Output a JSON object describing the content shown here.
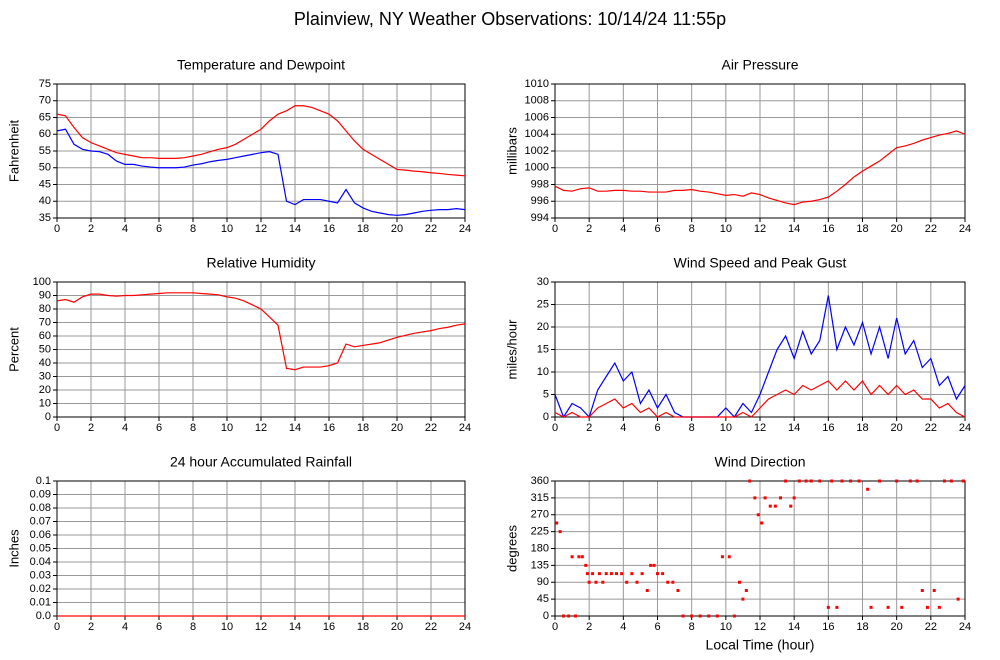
{
  "title": "Plainview, NY Weather Observations: 10/14/24 11:55p",
  "xlabel": "Local Time (hour)",
  "chart_data": [
    {
      "type": "line",
      "title": "Temperature and Dewpoint",
      "ylabel": "Fahrenheit",
      "x": [
        0,
        0.5,
        1,
        1.5,
        2,
        2.5,
        3,
        3.5,
        4,
        4.5,
        5,
        5.5,
        6,
        6.5,
        7,
        7.5,
        8,
        8.5,
        9,
        9.5,
        10,
        10.5,
        11,
        11.5,
        12,
        12.5,
        13,
        13.5,
        14,
        14.5,
        15,
        15.5,
        16,
        16.5,
        17,
        17.5,
        18,
        18.5,
        19,
        19.5,
        20,
        20.5,
        21,
        21.5,
        22,
        22.5,
        23,
        23.5,
        24
      ],
      "series": [
        {
          "color": "#ff0000",
          "values": [
            66,
            65.5,
            62,
            59,
            57.5,
            56.5,
            55.5,
            54.5,
            54,
            53.5,
            53,
            53,
            52.8,
            52.8,
            52.8,
            53,
            53.5,
            54,
            54.8,
            55.5,
            56,
            57,
            58.5,
            60,
            61.5,
            64,
            66,
            67,
            68.5,
            68.5,
            68,
            67,
            66,
            64,
            61,
            58,
            55.5,
            54,
            52.5,
            51,
            49.5,
            49.3,
            49,
            48.8,
            48.5,
            48.3,
            48,
            47.8,
            47.6
          ]
        },
        {
          "color": "#0000ff",
          "values": [
            61,
            61.5,
            57,
            55.5,
            55,
            54.8,
            54,
            52,
            51,
            51,
            50.5,
            50.2,
            50,
            50,
            50,
            50.2,
            50.8,
            51.2,
            51.8,
            52.2,
            52.5,
            53,
            53.5,
            54,
            54.5,
            54.8,
            54,
            40,
            39,
            40.5,
            40.5,
            40.5,
            40,
            39.5,
            43.5,
            39.5,
            38,
            37,
            36.5,
            36,
            35.8,
            36,
            36.5,
            37,
            37.3,
            37.5,
            37.5,
            37.8,
            37.5
          ]
        }
      ],
      "xlim": [
        0,
        24
      ],
      "xticks": [
        0,
        2,
        4,
        6,
        8,
        10,
        12,
        14,
        16,
        18,
        20,
        22,
        24
      ],
      "ylim": [
        35,
        75
      ],
      "yticks": [
        35,
        40,
        45,
        50,
        55,
        60,
        65,
        70,
        75
      ],
      "grid": true
    },
    {
      "type": "line",
      "title": "Air Pressure",
      "ylabel": "millibars",
      "x": [
        0,
        0.5,
        1,
        1.5,
        2,
        2.5,
        3,
        3.5,
        4,
        4.5,
        5,
        5.5,
        6,
        6.5,
        7,
        7.5,
        8,
        8.5,
        9,
        9.5,
        10,
        10.5,
        11,
        11.5,
        12,
        12.5,
        13,
        13.5,
        14,
        14.5,
        15,
        15.5,
        16,
        16.5,
        17,
        17.5,
        18,
        18.5,
        19,
        19.5,
        20,
        20.5,
        21,
        21.5,
        22,
        22.5,
        23,
        23.5,
        24
      ],
      "series": [
        {
          "color": "#ff0000",
          "values": [
            997.8,
            997.3,
            997.2,
            997.5,
            997.6,
            997.2,
            997.2,
            997.3,
            997.3,
            997.2,
            997.2,
            997.1,
            997.1,
            997.1,
            997.3,
            997.3,
            997.4,
            997.2,
            997.1,
            996.9,
            996.7,
            996.8,
            996.6,
            997,
            996.8,
            996.4,
            996.1,
            995.8,
            995.6,
            995.9,
            996,
            996.2,
            996.5,
            997.2,
            998,
            998.9,
            999.6,
            1000.2,
            1000.8,
            1001.6,
            1002.4,
            1002.6,
            1002.9,
            1003.3,
            1003.6,
            1003.9,
            1004.1,
            1004.4,
            1004
          ]
        }
      ],
      "xlim": [
        0,
        24
      ],
      "xticks": [
        0,
        2,
        4,
        6,
        8,
        10,
        12,
        14,
        16,
        18,
        20,
        22,
        24
      ],
      "ylim": [
        994,
        1010
      ],
      "yticks": [
        994,
        996,
        998,
        1000,
        1002,
        1004,
        1006,
        1008,
        1010
      ],
      "grid": true
    },
    {
      "type": "line",
      "title": "Relative Humidity",
      "ylabel": "Percent",
      "x": [
        0,
        0.5,
        1,
        1.5,
        2,
        2.5,
        3,
        3.5,
        4,
        4.5,
        5,
        5.5,
        6,
        6.5,
        7,
        7.5,
        8,
        8.5,
        9,
        9.5,
        10,
        10.5,
        11,
        11.5,
        12,
        12.5,
        13,
        13.5,
        14,
        14.5,
        15,
        15.5,
        16,
        16.5,
        17,
        17.5,
        18,
        18.5,
        19,
        19.5,
        20,
        20.5,
        21,
        21.5,
        22,
        22.5,
        23,
        23.5,
        24
      ],
      "series": [
        {
          "color": "#ff0000",
          "values": [
            86,
            87,
            85,
            89,
            91,
            91,
            90,
            89.5,
            90,
            90,
            90.5,
            91,
            91.5,
            92,
            92,
            92,
            92,
            91.5,
            91,
            90.5,
            89,
            88,
            86,
            83,
            80,
            74,
            68,
            36,
            35,
            37,
            37,
            37,
            38,
            40,
            54,
            52,
            53,
            54,
            55,
            57,
            59,
            60.5,
            62,
            63,
            64,
            65.5,
            66.5,
            68,
            69
          ]
        }
      ],
      "xlim": [
        0,
        24
      ],
      "xticks": [
        0,
        2,
        4,
        6,
        8,
        10,
        12,
        14,
        16,
        18,
        20,
        22,
        24
      ],
      "ylim": [
        0,
        100
      ],
      "yticks": [
        0,
        10,
        20,
        30,
        40,
        50,
        60,
        70,
        80,
        90,
        100
      ],
      "grid": true
    },
    {
      "type": "line",
      "title": "Wind Speed and Peak Gust",
      "ylabel": "miles/hour",
      "x": [
        0,
        0.5,
        1,
        1.5,
        2,
        2.5,
        3,
        3.5,
        4,
        4.5,
        5,
        5.5,
        6,
        6.5,
        7,
        7.5,
        8,
        8.5,
        9,
        9.5,
        10,
        10.5,
        11,
        11.5,
        12,
        12.5,
        13,
        13.5,
        14,
        14.5,
        15,
        15.5,
        16,
        16.5,
        17,
        17.5,
        18,
        18.5,
        19,
        19.5,
        20,
        20.5,
        21,
        21.5,
        22,
        22.5,
        23,
        23.5,
        24
      ],
      "series": [
        {
          "color": "#0000ff",
          "values": [
            5,
            0,
            3,
            2,
            0,
            6,
            9,
            12,
            8,
            10,
            3,
            6,
            2,
            5,
            1,
            0,
            0,
            0,
            0,
            0,
            2,
            0,
            3,
            1,
            5,
            10,
            15,
            18,
            13,
            19,
            14,
            17,
            27,
            15,
            20,
            16,
            21,
            14,
            20,
            13,
            22,
            14,
            17,
            11,
            13,
            7,
            9,
            4,
            7
          ]
        },
        {
          "color": "#ff0000",
          "values": [
            1,
            0,
            1,
            0,
            0,
            2,
            3,
            4,
            2,
            3,
            1,
            2,
            0,
            1,
            0,
            0,
            0,
            0,
            0,
            0,
            0,
            0,
            1,
            0,
            2,
            4,
            5,
            6,
            5,
            7,
            6,
            7,
            8,
            6,
            8,
            6,
            8,
            5,
            7,
            5,
            7,
            5,
            6,
            4,
            4,
            2,
            3,
            1,
            0
          ]
        }
      ],
      "xlim": [
        0,
        24
      ],
      "xticks": [
        0,
        2,
        4,
        6,
        8,
        10,
        12,
        14,
        16,
        18,
        20,
        22,
        24
      ],
      "ylim": [
        0,
        30
      ],
      "yticks": [
        0,
        5,
        10,
        15,
        20,
        25,
        30
      ],
      "grid": true
    },
    {
      "type": "line",
      "title": "24 hour Accumulated Rainfall",
      "ylabel": "Inches",
      "x": [
        0,
        24
      ],
      "series": [
        {
          "color": "#ff0000",
          "values": [
            0,
            0
          ]
        }
      ],
      "xlim": [
        0,
        24
      ],
      "xticks": [
        0,
        2,
        4,
        6,
        8,
        10,
        12,
        14,
        16,
        18,
        20,
        22,
        24
      ],
      "ylim": [
        0,
        0.1
      ],
      "yticks": [
        {
          "value": 0,
          "label": "0.0"
        },
        0.01,
        0.02,
        0.03,
        0.04,
        0.05,
        0.06,
        0.07,
        0.08,
        0.09,
        0.1
      ],
      "grid": true
    },
    {
      "type": "scatter",
      "title": "Wind Direction",
      "ylabel": "degrees",
      "x": [
        0.1,
        0.3,
        0.5,
        0.8,
        1,
        1.2,
        1.4,
        1.6,
        1.8,
        1.9,
        2,
        2.2,
        2.4,
        2.6,
        2.8,
        3,
        3.3,
        3.6,
        3.9,
        4.2,
        4.5,
        4.8,
        5.1,
        5.4,
        5.6,
        5.8,
        6,
        6.3,
        6.6,
        6.9,
        7.2,
        7.5,
        8,
        8.5,
        9,
        9.5,
        9.8,
        10.2,
        10.5,
        10.8,
        11,
        11.2,
        11.4,
        11.7,
        11.9,
        12.1,
        12.3,
        12.6,
        12.9,
        13.2,
        13.5,
        13.8,
        14,
        14.3,
        14.7,
        15,
        15.5,
        16,
        16.2,
        16.5,
        16.8,
        17.3,
        17.8,
        18.3,
        18.5,
        19,
        19.5,
        20,
        20.3,
        20.8,
        21.2,
        21.5,
        21.8,
        22.2,
        22.5,
        22.8,
        23.2,
        23.6,
        23.9
      ],
      "series": [
        {
          "color": "#ff0000",
          "values": [
            248,
            225,
            0,
            0,
            158,
            0,
            158,
            158,
            135,
            113,
            90,
            113,
            90,
            113,
            90,
            113,
            113,
            113,
            113,
            90,
            113,
            90,
            113,
            68,
            135,
            135,
            113,
            113,
            90,
            90,
            68,
            0,
            0,
            0,
            0,
            0,
            158,
            158,
            0,
            90,
            45,
            68,
            360,
            315,
            270,
            248,
            315,
            293,
            293,
            315,
            360,
            293,
            315,
            360,
            360,
            360,
            360,
            23,
            360,
            23,
            360,
            360,
            360,
            338,
            23,
            360,
            23,
            360,
            23,
            360,
            360,
            68,
            23,
            68,
            23,
            360,
            360,
            45,
            360
          ]
        }
      ],
      "xlim": [
        0,
        24
      ],
      "xticks": [
        0,
        2,
        4,
        6,
        8,
        10,
        12,
        14,
        16,
        18,
        20,
        22,
        24
      ],
      "ylim": [
        0,
        360
      ],
      "yticks": [
        0,
        45,
        90,
        135,
        180,
        225,
        270,
        315,
        360
      ],
      "grid": true
    }
  ]
}
